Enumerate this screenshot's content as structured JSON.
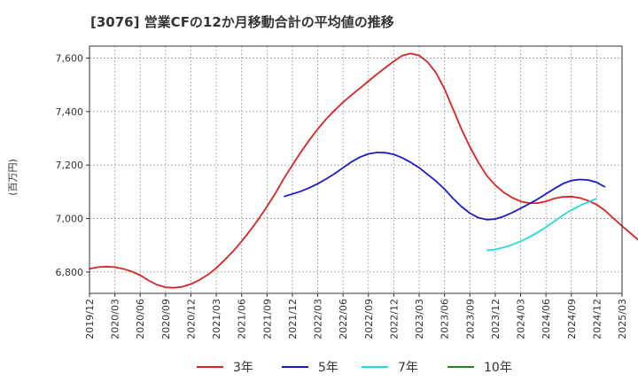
{
  "chart_data": {
    "type": "line",
    "title": "[3076]  営業CFの12か月移動合計の平均値の推移",
    "ylabel": "(百万円)",
    "ylim": [
      6720,
      7645
    ],
    "yticks": [
      6800,
      7000,
      7200,
      7400,
      7600
    ],
    "ytick_labels": [
      "6,800",
      "7,000",
      "7,200",
      "7,400",
      "7,600"
    ],
    "x_tick_labels": [
      "2019/12",
      "2020/03",
      "2020/06",
      "2020/09",
      "2020/12",
      "2021/03",
      "2021/06",
      "2021/09",
      "2021/12",
      "2022/03",
      "2022/06",
      "2022/09",
      "2022/12",
      "2023/03",
      "2023/06",
      "2023/09",
      "2023/12",
      "2024/03",
      "2024/06",
      "2024/09",
      "2024/12",
      "2025/03"
    ],
    "grid": true,
    "legend_position": "bottom",
    "series": [
      {
        "name": "3年",
        "color": "#dd2222",
        "start_index": 0,
        "values": [
          6812,
          6818,
          6820,
          6818,
          6812,
          6802,
          6788,
          6768,
          6752,
          6743,
          6741,
          6745,
          6755,
          6770,
          6790,
          6815,
          6845,
          6878,
          6915,
          6955,
          6998,
          7045,
          7095,
          7150,
          7200,
          7248,
          7293,
          7335,
          7372,
          7405,
          7435,
          7462,
          7488,
          7514,
          7540,
          7564,
          7588,
          7610,
          7617,
          7610,
          7585,
          7545,
          7485,
          7410,
          7335,
          7268,
          7210,
          7160,
          7125,
          7098,
          7078,
          7064,
          7058,
          7058,
          7064,
          7075,
          7081,
          7082,
          7077,
          7067,
          7052,
          7030,
          7000,
          6972,
          6945,
          6918,
          6890,
          6862,
          6834
        ]
      },
      {
        "name": "5年",
        "color": "#1a1acc",
        "start_index": 23,
        "values": [
          7082,
          7092,
          7102,
          7115,
          7130,
          7148,
          7168,
          7190,
          7212,
          7230,
          7242,
          7247,
          7246,
          7240,
          7227,
          7210,
          7190,
          7165,
          7140,
          7110,
          7075,
          7045,
          7020,
          7003,
          6996,
          6998,
          7008,
          7022,
          7038,
          7055,
          7072,
          7092,
          7112,
          7130,
          7142,
          7146,
          7144,
          7135,
          7118
        ]
      },
      {
        "name": "7年",
        "color": "#22dddd",
        "start_index": 47,
        "values": [
          6880,
          6884,
          6892,
          6902,
          6915,
          6930,
          6948,
          6968,
          6990,
          7012,
          7032,
          7048,
          7062,
          7075
        ]
      },
      {
        "name": "10年",
        "color": "#228822",
        "start_index": 0,
        "values": []
      }
    ]
  }
}
